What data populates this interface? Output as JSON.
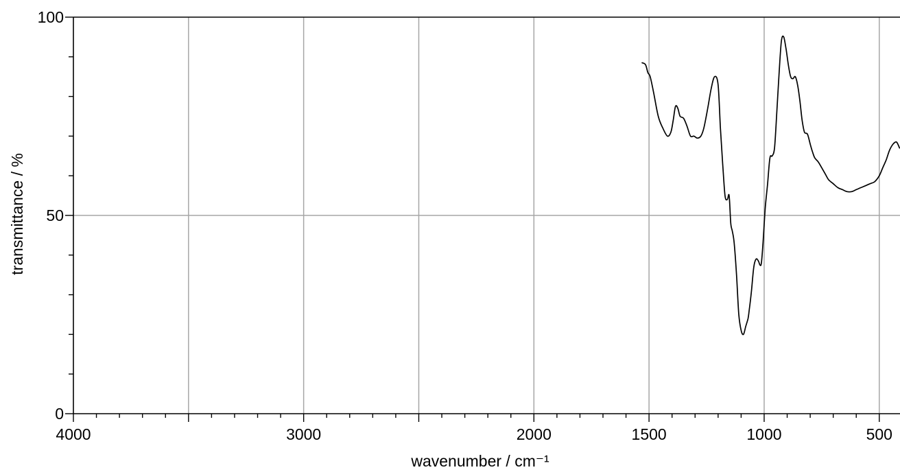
{
  "chart_data": {
    "type": "line",
    "title": "",
    "xlabel": "wavenumber / cm⁻¹",
    "ylabel": "transmittance / %",
    "xlim": [
      4000,
      410
    ],
    "ylim": [
      0,
      100
    ],
    "x_reversed": true,
    "grid": true,
    "x_major_ticks": [
      4000,
      3500,
      3000,
      2500,
      2000,
      1500,
      1000,
      500
    ],
    "x_tick_labels": [
      "4000",
      "3000",
      "2000",
      "1500",
      "1000",
      "500"
    ],
    "x_tick_label_values": [
      4000,
      3000,
      2000,
      1500,
      1000,
      500
    ],
    "y_ticks": [
      0,
      50,
      100
    ],
    "y_tick_labels": [
      "0",
      "50",
      "100"
    ],
    "series": [
      {
        "x": [
          1530,
          1515,
          1505,
          1495,
          1480,
          1460,
          1440,
          1420,
          1405,
          1395,
          1385,
          1375,
          1365,
          1350,
          1335,
          1320,
          1305,
          1290,
          1275,
          1262,
          1245,
          1230,
          1215,
          1200,
          1190,
          1180,
          1170,
          1160,
          1152,
          1145,
          1138,
          1130,
          1120,
          1110,
          1100,
          1090,
          1080,
          1070,
          1065,
          1055,
          1045,
          1035,
          1025,
          1018,
          1012,
          1005,
          995,
          985,
          975,
          965,
          955,
          945,
          935,
          925,
          915,
          905,
          895,
          885,
          875,
          865,
          855,
          845,
          835,
          825,
          812,
          800,
          790,
          780,
          765,
          750,
          735,
          720,
          700,
          680,
          660,
          640,
          620,
          600,
          580,
          560,
          540,
          520,
          500,
          485,
          470,
          455,
          440,
          425,
          412
        ],
        "y": [
          88.5,
          88,
          86,
          85,
          81,
          75,
          72,
          70,
          71,
          74,
          77.5,
          77,
          75,
          74.5,
          72.5,
          70,
          70,
          69.5,
          70,
          72,
          77,
          82,
          85,
          83,
          72,
          63,
          55,
          54,
          55,
          48,
          46,
          43,
          35,
          25,
          21,
          20,
          22,
          24,
          26,
          31,
          37,
          39,
          38.5,
          37.5,
          38,
          43,
          52,
          58,
          64.5,
          65,
          67,
          76,
          86,
          94,
          95,
          92,
          88,
          85,
          84.5,
          85,
          83,
          79,
          74,
          71,
          70.5,
          68,
          66,
          64.5,
          63.5,
          62,
          60.5,
          59,
          58,
          57,
          56.5,
          56,
          56,
          56.5,
          57,
          57.5,
          58,
          58.5,
          60,
          62,
          64,
          66.5,
          68,
          68.5,
          67
        ]
      }
    ]
  }
}
